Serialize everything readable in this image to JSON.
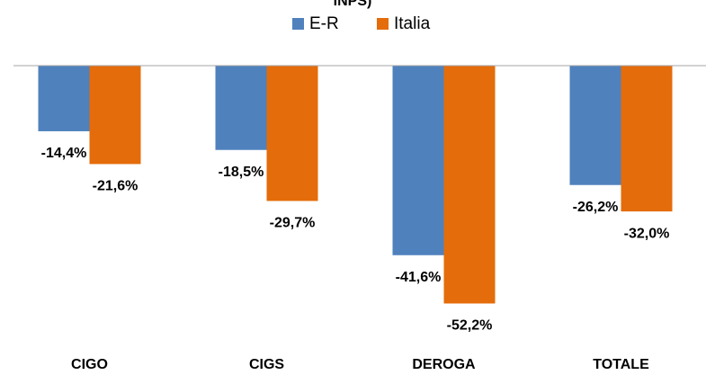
{
  "chart_data": {
    "type": "bar",
    "title": "INPS)",
    "categories": [
      "CIGO",
      "CIGS",
      "DEROGA",
      "TOTALE"
    ],
    "series": [
      {
        "name": "E-R",
        "color": "#4f81bd",
        "values": [
          -14.4,
          -18.5,
          -41.6,
          -26.2
        ],
        "value_labels": [
          "-14,4%",
          "-18,5%",
          "-41,6%",
          "-26,2%"
        ]
      },
      {
        "name": "Italia",
        "color": "#e46c0a",
        "values": [
          -21.6,
          -29.7,
          -52.2,
          -32.0
        ],
        "value_labels": [
          "-21,6%",
          "-29,7%",
          "-52,2%",
          "-32,0%"
        ]
      }
    ],
    "ylim": [
      -60,
      0
    ],
    "legend": "top"
  }
}
